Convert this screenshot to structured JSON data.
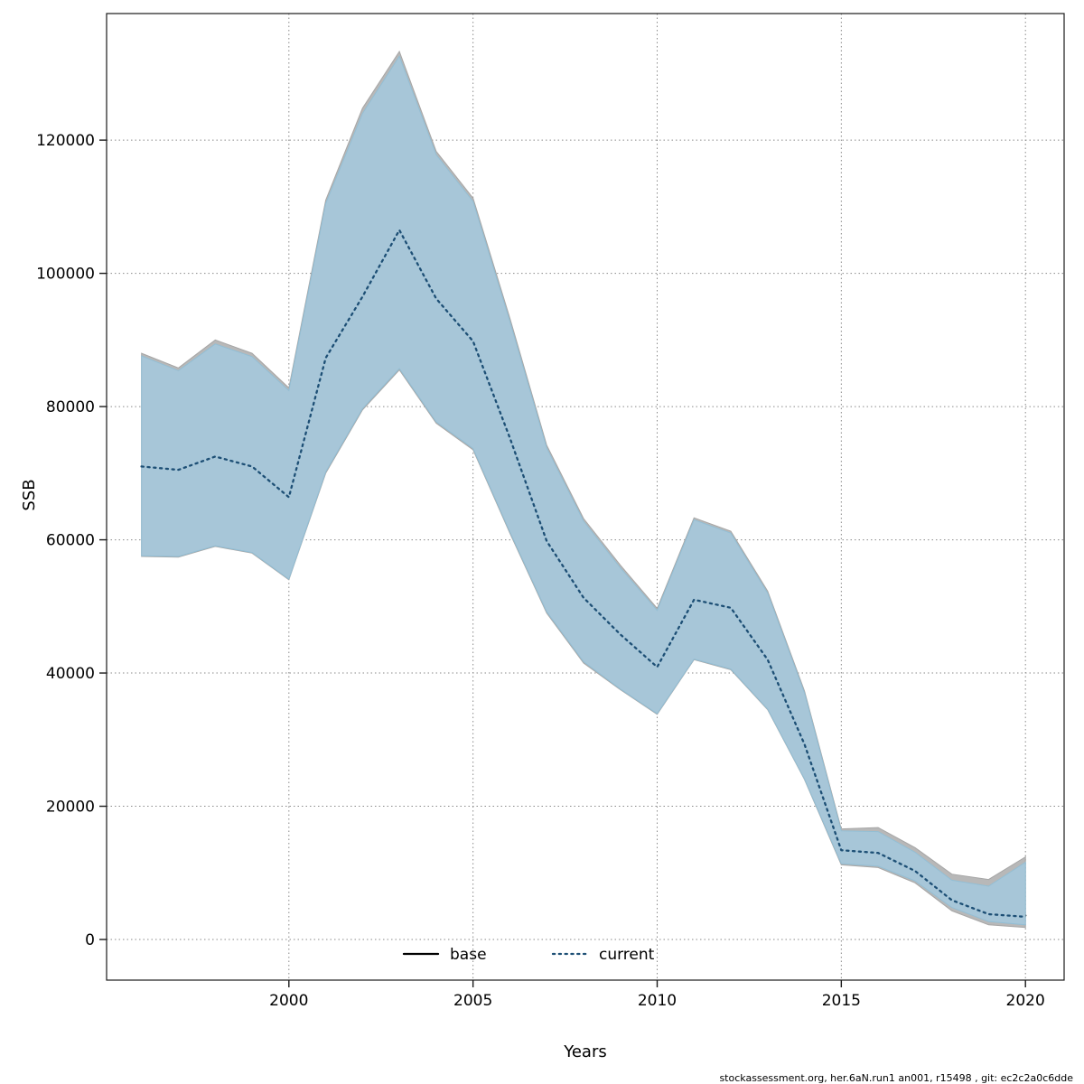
{
  "page": {
    "background": "#ffffff"
  },
  "footer": {
    "text": "stockassessment.org, her.6aN.run1  an001, r15498 , git: ec2c2a0c6dde"
  },
  "legend": {
    "items": [
      {
        "label": "base",
        "line_style": "solid",
        "line_color": "#000000"
      },
      {
        "label": "current",
        "line_style": "dotted",
        "line_color": "#1d4f75"
      }
    ]
  },
  "chart_data": {
    "type": "line",
    "title": "",
    "xlabel": "Years",
    "ylabel": "SSB",
    "grid": true,
    "legend_position": "bottom-center-inside",
    "x_range": [
      1995.05,
      2021.05
    ],
    "y_range": [
      -6100,
      139000
    ],
    "x_ticks": [
      2000,
      2005,
      2010,
      2015,
      2020
    ],
    "y_ticks": [
      0,
      20000,
      40000,
      60000,
      80000,
      100000,
      120000
    ],
    "x": [
      1996,
      1997,
      1998,
      1999,
      2000,
      2001,
      2002,
      2003,
      2004,
      2005,
      2006,
      2007,
      2008,
      2009,
      2010,
      2011,
      2012,
      2013,
      2014,
      2015,
      2016,
      2017,
      2018,
      2019,
      2020
    ],
    "series": [
      {
        "name": "base",
        "line_style": "solid",
        "line_color": "#000000",
        "band_color": "#b8b8b8",
        "band_edge_color": "#a6a6a6",
        "values": [
          71000,
          70600,
          72600,
          71000,
          66500,
          87500,
          96800,
          106800,
          96500,
          90000,
          75500,
          60000,
          51500,
          46000,
          41000,
          51200,
          50000,
          42300,
          29500,
          13500,
          13100,
          10500,
          6100,
          4000,
          3600
        ],
        "ci_low": [
          57500,
          57400,
          59000,
          58000,
          54000,
          70000,
          79500,
          85500,
          77500,
          73500,
          61000,
          49000,
          41500,
          37500,
          33800,
          42000,
          40500,
          34500,
          24000,
          11200,
          10800,
          8500,
          4300,
          2200,
          1800
        ],
        "ci_high": [
          88000,
          85800,
          90000,
          88000,
          82800,
          111000,
          124800,
          133300,
          118300,
          111300,
          93300,
          74200,
          63200,
          56200,
          49700,
          63300,
          61300,
          52300,
          37300,
          16600,
          16800,
          13800,
          9800,
          9000,
          12400
        ]
      },
      {
        "name": "current",
        "line_style": "dotted",
        "line_color": "#1d4f75",
        "band_color": "#a7c6d8",
        "band_edge_color": "#93bed4",
        "values": [
          71000,
          70500,
          72500,
          71000,
          66400,
          87300,
          96500,
          106500,
          96200,
          89800,
          75300,
          59800,
          51300,
          45800,
          40900,
          51000,
          49800,
          42000,
          29300,
          13400,
          13000,
          10300,
          5900,
          3800,
          3400
        ],
        "ci_low": [
          57600,
          57500,
          59100,
          58100,
          54100,
          70200,
          79700,
          85700,
          77700,
          73700,
          61200,
          49200,
          41700,
          37600,
          33900,
          42100,
          40600,
          34600,
          24100,
          11400,
          11000,
          8800,
          4800,
          2700,
          2200
        ],
        "ci_high": [
          87600,
          85400,
          89400,
          87500,
          82400,
          110500,
          124000,
          132600,
          117800,
          110800,
          92800,
          73800,
          62800,
          55800,
          49400,
          63000,
          61000,
          52000,
          37000,
          16300,
          16200,
          13100,
          8900,
          8000,
          11600
        ]
      }
    ]
  }
}
